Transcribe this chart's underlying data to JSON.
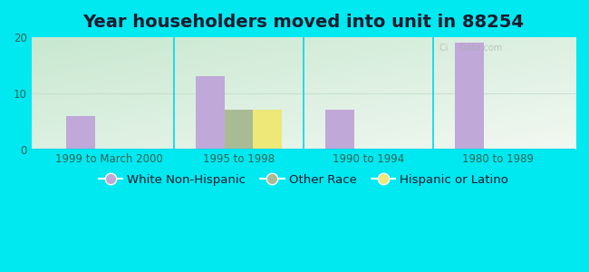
{
  "title": "Year householders moved into unit in 88254",
  "categories": [
    "1999 to March 2000",
    "1995 to 1998",
    "1990 to 1994",
    "1980 to 1989"
  ],
  "series": {
    "White Non-Hispanic": [
      6,
      13,
      7,
      19
    ],
    "Other Race": [
      0,
      7,
      0,
      0
    ],
    "Hispanic or Latino": [
      0,
      7,
      0,
      0
    ]
  },
  "colors": {
    "White Non-Hispanic": "#c0a8d8",
    "Other Race": "#a8bb94",
    "Hispanic or Latino": "#ede878"
  },
  "ylim": [
    0,
    20
  ],
  "yticks": [
    0,
    10,
    20
  ],
  "outer_background": "#00e8f0",
  "bar_width": 0.22,
  "title_fontsize": 14,
  "tick_fontsize": 8.5,
  "legend_fontsize": 9.5
}
